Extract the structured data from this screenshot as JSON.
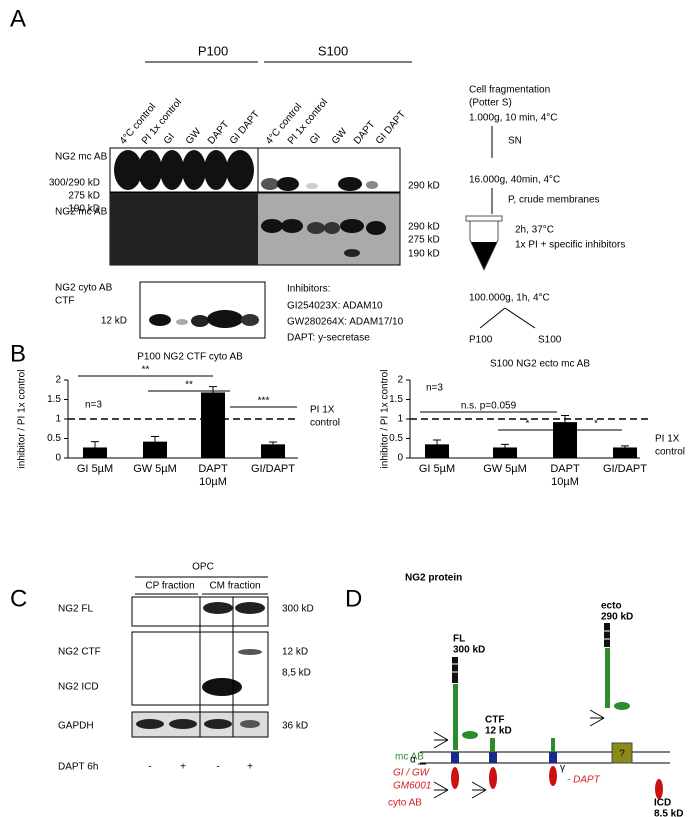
{
  "panel_labels": [
    "A",
    "B",
    "C",
    "D"
  ],
  "panel_a": {
    "groups": [
      "P100",
      "S100"
    ],
    "lanes": [
      "4°C control",
      "PI 1x control",
      "GI",
      "GW",
      "DAPT",
      "GI DAPT",
      "4°C control",
      "PI 1x control",
      "GI",
      "GW",
      "DAPT",
      "GI DAPT"
    ],
    "blot_labels": [
      "NG2 mc AB",
      "NG2 mc AB",
      "NG2 cyto AB",
      "CTF"
    ],
    "left_markers": [
      "300/290 kD",
      "275 kD",
      "190 kD",
      "12  kD"
    ],
    "right_markers": [
      "290 kD",
      "290 kD",
      "275 kD",
      "190 kD"
    ],
    "inhibitors": [
      "Inhibitors:",
      "GI254023X: ADAM10",
      "GW280264X: ADAM17/10",
      "DAPT: y-secretase"
    ],
    "workflow": [
      "Cell fragmentation",
      "(Potter S)",
      "1.000g, 10 min, 4°C",
      "SN",
      "16.000g, 40min, 4°C",
      "P, crude membranes",
      "2h, 37°C",
      "1x PI + specific inhibitors",
      "100.000g, 1h, 4°C",
      "P100",
      "S100"
    ]
  },
  "chart_data": [
    {
      "type": "bar",
      "title": "P100 NG2 CTF cyto AB",
      "y_label": "inhibitor / PI 1x control",
      "categories": [
        "GI 5µM",
        "GW 5µM",
        "DAPT 10µM",
        "GI/DAPT"
      ],
      "values": [
        0.27,
        0.42,
        1.68,
        0.35
      ],
      "errors": [
        0.15,
        0.13,
        0.15,
        0.06
      ],
      "color": "#000000",
      "ylim": [
        0,
        2
      ],
      "yticks": [
        0,
        0.5,
        1,
        1.5,
        2
      ],
      "reference_line": {
        "value": 1,
        "label": [
          "PI 1X",
          "control"
        ]
      },
      "note": "n=3",
      "annotations": [
        {
          "label": "**"
        },
        {
          "label": "**"
        },
        {
          "label": "***"
        }
      ]
    },
    {
      "type": "bar",
      "title": "S100 NG2 ecto mc AB",
      "y_label": "inhibitor / PI 1x control",
      "categories": [
        "GI 5µM",
        "GW 5µM",
        "DAPT 10µM",
        "GI/DAPT"
      ],
      "values": [
        0.35,
        0.27,
        0.92,
        0.27
      ],
      "errors": [
        0.11,
        0.08,
        0.17,
        0.04
      ],
      "color": "#000000",
      "ylim": [
        0,
        2
      ],
      "yticks": [
        0,
        0.5,
        1,
        1.5,
        2
      ],
      "reference_line": {
        "value": 1,
        "label": [
          "PI 1X",
          "control"
        ]
      },
      "note": "n=3",
      "annotations": [
        {
          "label": "n.s. p=0.059"
        },
        {
          "label": "*"
        },
        {
          "label": "*"
        }
      ]
    }
  ],
  "panel_c": {
    "title": "OPC",
    "fractions": [
      "CP fraction",
      "CM fraction"
    ],
    "rows": [
      "NG2 FL",
      "NG2 CTF",
      "NG2 ICD",
      "GAPDH"
    ],
    "sizes": [
      "300 kD",
      "12 kD",
      "8,5 kD",
      "36 kD"
    ],
    "treatment": "DAPT 6h",
    "signs": [
      "-",
      "+",
      "-",
      "+"
    ]
  },
  "panel_d": {
    "title": "NG2 protein",
    "fl": [
      "FL",
      "300 kD"
    ],
    "ecto": [
      "ecto",
      "290 kD"
    ],
    "ctf": [
      "CTF",
      "12 kD"
    ],
    "icd": [
      "ICD",
      "8.5 kD"
    ],
    "mc_ab": "mc AB",
    "alpha": "α",
    "gi_gw": "GI / GW",
    "gm6001": "GM6001",
    "cyto_ab": "cyto AB",
    "gamma": "γ",
    "dapt": "- DAPT",
    "unknown": "?"
  }
}
